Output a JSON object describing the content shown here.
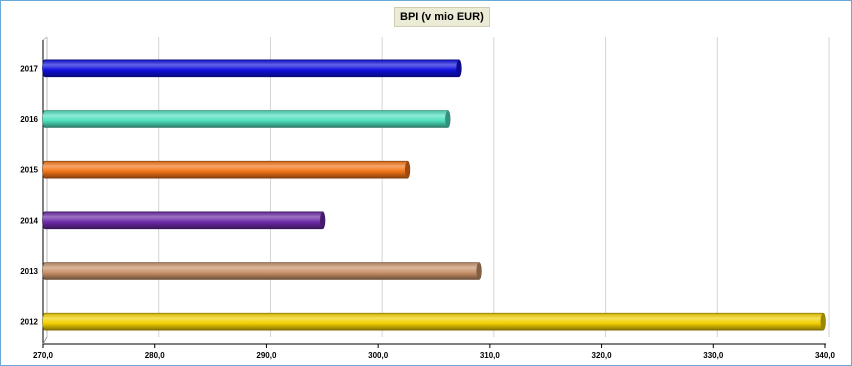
{
  "chart_data": {
    "type": "bar",
    "orientation": "horizontal",
    "title": "BPI (v mio EUR)",
    "categories": [
      "2012",
      "2013",
      "2014",
      "2015",
      "2016",
      "2017"
    ],
    "values": [
      340.0,
      309.2,
      295.2,
      302.8,
      306.4,
      307.4
    ],
    "colors": [
      "#f2cf00",
      "#c8916a",
      "#6c2aa6",
      "#f27417",
      "#4fe0bd",
      "#1010dd"
    ],
    "xlim": [
      270,
      340
    ],
    "x_ticks": [
      "270,0",
      "280,0",
      "290,0",
      "300,0",
      "310,0",
      "320,0",
      "330,0",
      "340,0"
    ],
    "xlabel": "",
    "ylabel": "",
    "grid": "vertical",
    "legend": "none"
  }
}
